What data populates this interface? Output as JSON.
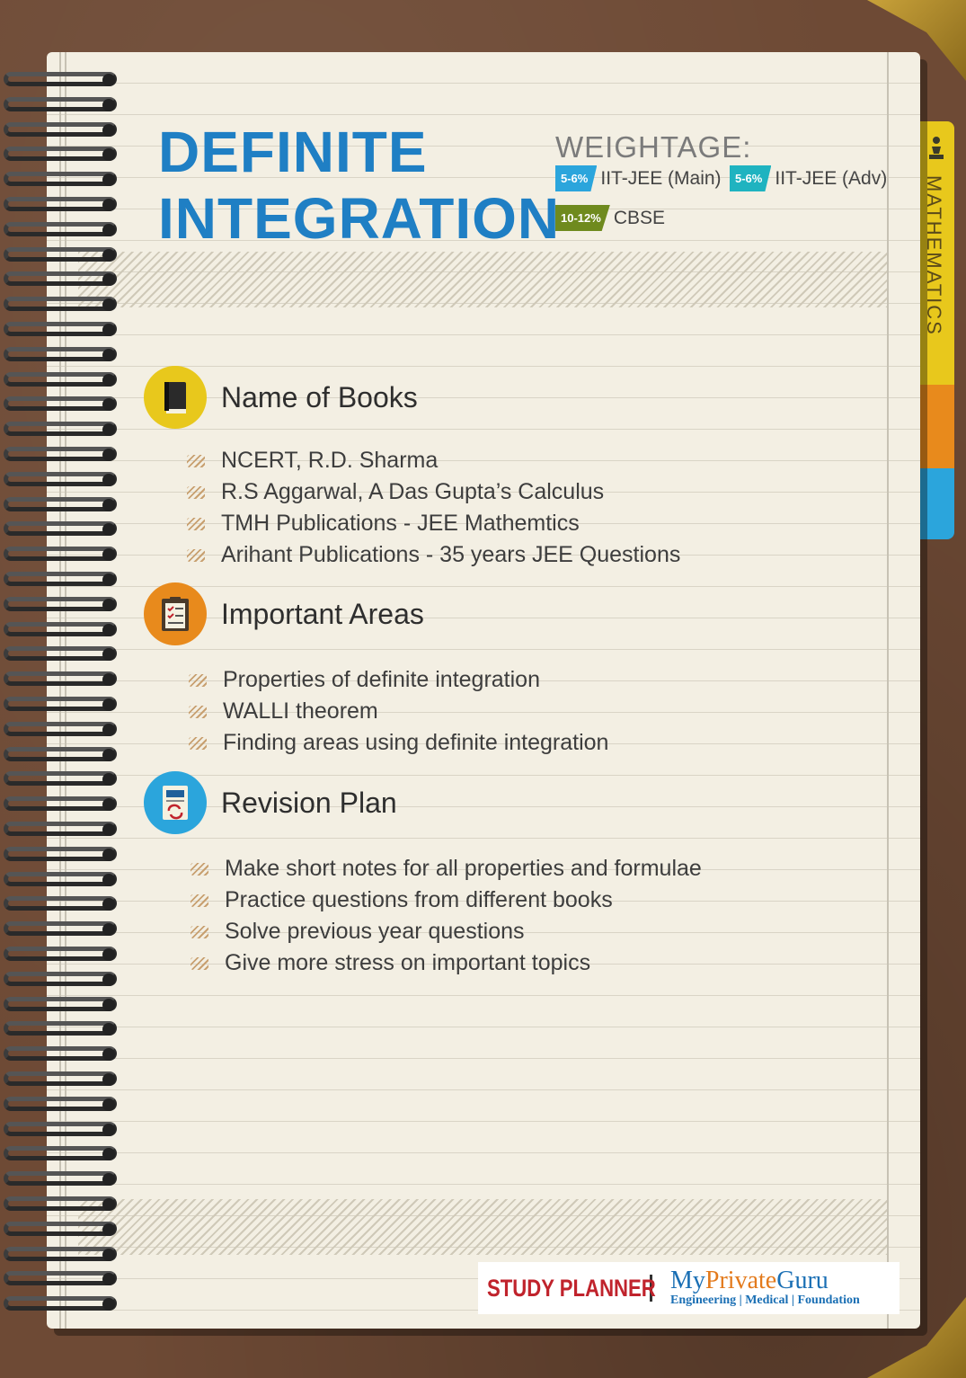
{
  "title": {
    "line1": "DEFINITE",
    "line2": "INTEGRATION"
  },
  "weightage": {
    "label": "WEIGHTAGE:",
    "items": [
      {
        "tag": "5-6%",
        "text": "IIT-JEE (Main)",
        "color": "#2ba5dc"
      },
      {
        "tag": "5-6%",
        "text": "IIT-JEE (Adv)",
        "color": "#1fb3c0"
      },
      {
        "tag": "10-12%",
        "text": "CBSE",
        "color": "#6f8a1e"
      }
    ]
  },
  "side_tab": {
    "text": "MATHEMATICS",
    "icon": "chess-pawn-icon"
  },
  "sections": [
    {
      "heading": "Name of Books",
      "icon": "book-icon",
      "color": "#e8c81c",
      "items": [
        "NCERT, R.D. Sharma",
        "R.S Aggarwal, A Das Gupta’s Calculus",
        "TMH Publications - JEE Mathemtics",
        "Arihant Publications - 35 years JEE Questions"
      ]
    },
    {
      "heading": "Important Areas",
      "icon": "clipboard-icon",
      "color": "#e88a1c",
      "items": [
        "Properties of definite integration",
        "WALLI theorem",
        "Finding areas using definite integration"
      ]
    },
    {
      "heading": "Revision Plan",
      "icon": "revision-doc-icon",
      "color": "#2ba5dc",
      "items": [
        "Make short notes for all properties and formulae",
        "Practice questions from different books",
        "Solve previous year questions",
        "Give more stress on important topics"
      ]
    }
  ],
  "footer": {
    "study_planner": "STUDY PLANNER",
    "brand_my": "My",
    "brand_private": "Private",
    "brand_guru": "Guru",
    "tagline": "Engineering | Medical | Foundation"
  }
}
